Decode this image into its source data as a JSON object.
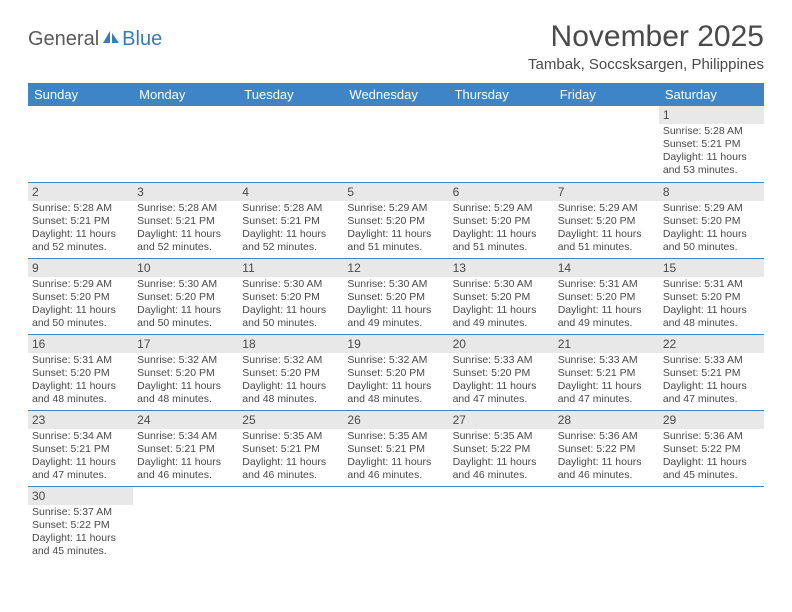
{
  "logo": {
    "text1": "General",
    "text2": "Blue"
  },
  "title": "November 2025",
  "location": "Tambak, Soccsksargen, Philippines",
  "colors": {
    "header_bg": "#3d85c6",
    "daynum_bg": "#e8e8e8",
    "text": "#4a4a4a"
  },
  "weekdays": [
    "Sunday",
    "Monday",
    "Tuesday",
    "Wednesday",
    "Thursday",
    "Friday",
    "Saturday"
  ],
  "weeks": [
    [
      null,
      null,
      null,
      null,
      null,
      null,
      {
        "n": "1",
        "sr": "Sunrise: 5:28 AM",
        "ss": "Sunset: 5:21 PM",
        "d1": "Daylight: 11 hours",
        "d2": "and 53 minutes."
      }
    ],
    [
      {
        "n": "2",
        "sr": "Sunrise: 5:28 AM",
        "ss": "Sunset: 5:21 PM",
        "d1": "Daylight: 11 hours",
        "d2": "and 52 minutes."
      },
      {
        "n": "3",
        "sr": "Sunrise: 5:28 AM",
        "ss": "Sunset: 5:21 PM",
        "d1": "Daylight: 11 hours",
        "d2": "and 52 minutes."
      },
      {
        "n": "4",
        "sr": "Sunrise: 5:28 AM",
        "ss": "Sunset: 5:21 PM",
        "d1": "Daylight: 11 hours",
        "d2": "and 52 minutes."
      },
      {
        "n": "5",
        "sr": "Sunrise: 5:29 AM",
        "ss": "Sunset: 5:20 PM",
        "d1": "Daylight: 11 hours",
        "d2": "and 51 minutes."
      },
      {
        "n": "6",
        "sr": "Sunrise: 5:29 AM",
        "ss": "Sunset: 5:20 PM",
        "d1": "Daylight: 11 hours",
        "d2": "and 51 minutes."
      },
      {
        "n": "7",
        "sr": "Sunrise: 5:29 AM",
        "ss": "Sunset: 5:20 PM",
        "d1": "Daylight: 11 hours",
        "d2": "and 51 minutes."
      },
      {
        "n": "8",
        "sr": "Sunrise: 5:29 AM",
        "ss": "Sunset: 5:20 PM",
        "d1": "Daylight: 11 hours",
        "d2": "and 50 minutes."
      }
    ],
    [
      {
        "n": "9",
        "sr": "Sunrise: 5:29 AM",
        "ss": "Sunset: 5:20 PM",
        "d1": "Daylight: 11 hours",
        "d2": "and 50 minutes."
      },
      {
        "n": "10",
        "sr": "Sunrise: 5:30 AM",
        "ss": "Sunset: 5:20 PM",
        "d1": "Daylight: 11 hours",
        "d2": "and 50 minutes."
      },
      {
        "n": "11",
        "sr": "Sunrise: 5:30 AM",
        "ss": "Sunset: 5:20 PM",
        "d1": "Daylight: 11 hours",
        "d2": "and 50 minutes."
      },
      {
        "n": "12",
        "sr": "Sunrise: 5:30 AM",
        "ss": "Sunset: 5:20 PM",
        "d1": "Daylight: 11 hours",
        "d2": "and 49 minutes."
      },
      {
        "n": "13",
        "sr": "Sunrise: 5:30 AM",
        "ss": "Sunset: 5:20 PM",
        "d1": "Daylight: 11 hours",
        "d2": "and 49 minutes."
      },
      {
        "n": "14",
        "sr": "Sunrise: 5:31 AM",
        "ss": "Sunset: 5:20 PM",
        "d1": "Daylight: 11 hours",
        "d2": "and 49 minutes."
      },
      {
        "n": "15",
        "sr": "Sunrise: 5:31 AM",
        "ss": "Sunset: 5:20 PM",
        "d1": "Daylight: 11 hours",
        "d2": "and 48 minutes."
      }
    ],
    [
      {
        "n": "16",
        "sr": "Sunrise: 5:31 AM",
        "ss": "Sunset: 5:20 PM",
        "d1": "Daylight: 11 hours",
        "d2": "and 48 minutes."
      },
      {
        "n": "17",
        "sr": "Sunrise: 5:32 AM",
        "ss": "Sunset: 5:20 PM",
        "d1": "Daylight: 11 hours",
        "d2": "and 48 minutes."
      },
      {
        "n": "18",
        "sr": "Sunrise: 5:32 AM",
        "ss": "Sunset: 5:20 PM",
        "d1": "Daylight: 11 hours",
        "d2": "and 48 minutes."
      },
      {
        "n": "19",
        "sr": "Sunrise: 5:32 AM",
        "ss": "Sunset: 5:20 PM",
        "d1": "Daylight: 11 hours",
        "d2": "and 48 minutes."
      },
      {
        "n": "20",
        "sr": "Sunrise: 5:33 AM",
        "ss": "Sunset: 5:20 PM",
        "d1": "Daylight: 11 hours",
        "d2": "and 47 minutes."
      },
      {
        "n": "21",
        "sr": "Sunrise: 5:33 AM",
        "ss": "Sunset: 5:21 PM",
        "d1": "Daylight: 11 hours",
        "d2": "and 47 minutes."
      },
      {
        "n": "22",
        "sr": "Sunrise: 5:33 AM",
        "ss": "Sunset: 5:21 PM",
        "d1": "Daylight: 11 hours",
        "d2": "and 47 minutes."
      }
    ],
    [
      {
        "n": "23",
        "sr": "Sunrise: 5:34 AM",
        "ss": "Sunset: 5:21 PM",
        "d1": "Daylight: 11 hours",
        "d2": "and 47 minutes."
      },
      {
        "n": "24",
        "sr": "Sunrise: 5:34 AM",
        "ss": "Sunset: 5:21 PM",
        "d1": "Daylight: 11 hours",
        "d2": "and 46 minutes."
      },
      {
        "n": "25",
        "sr": "Sunrise: 5:35 AM",
        "ss": "Sunset: 5:21 PM",
        "d1": "Daylight: 11 hours",
        "d2": "and 46 minutes."
      },
      {
        "n": "26",
        "sr": "Sunrise: 5:35 AM",
        "ss": "Sunset: 5:21 PM",
        "d1": "Daylight: 11 hours",
        "d2": "and 46 minutes."
      },
      {
        "n": "27",
        "sr": "Sunrise: 5:35 AM",
        "ss": "Sunset: 5:22 PM",
        "d1": "Daylight: 11 hours",
        "d2": "and 46 minutes."
      },
      {
        "n": "28",
        "sr": "Sunrise: 5:36 AM",
        "ss": "Sunset: 5:22 PM",
        "d1": "Daylight: 11 hours",
        "d2": "and 46 minutes."
      },
      {
        "n": "29",
        "sr": "Sunrise: 5:36 AM",
        "ss": "Sunset: 5:22 PM",
        "d1": "Daylight: 11 hours",
        "d2": "and 45 minutes."
      }
    ],
    [
      {
        "n": "30",
        "sr": "Sunrise: 5:37 AM",
        "ss": "Sunset: 5:22 PM",
        "d1": "Daylight: 11 hours",
        "d2": "and 45 minutes."
      },
      null,
      null,
      null,
      null,
      null,
      null
    ]
  ]
}
